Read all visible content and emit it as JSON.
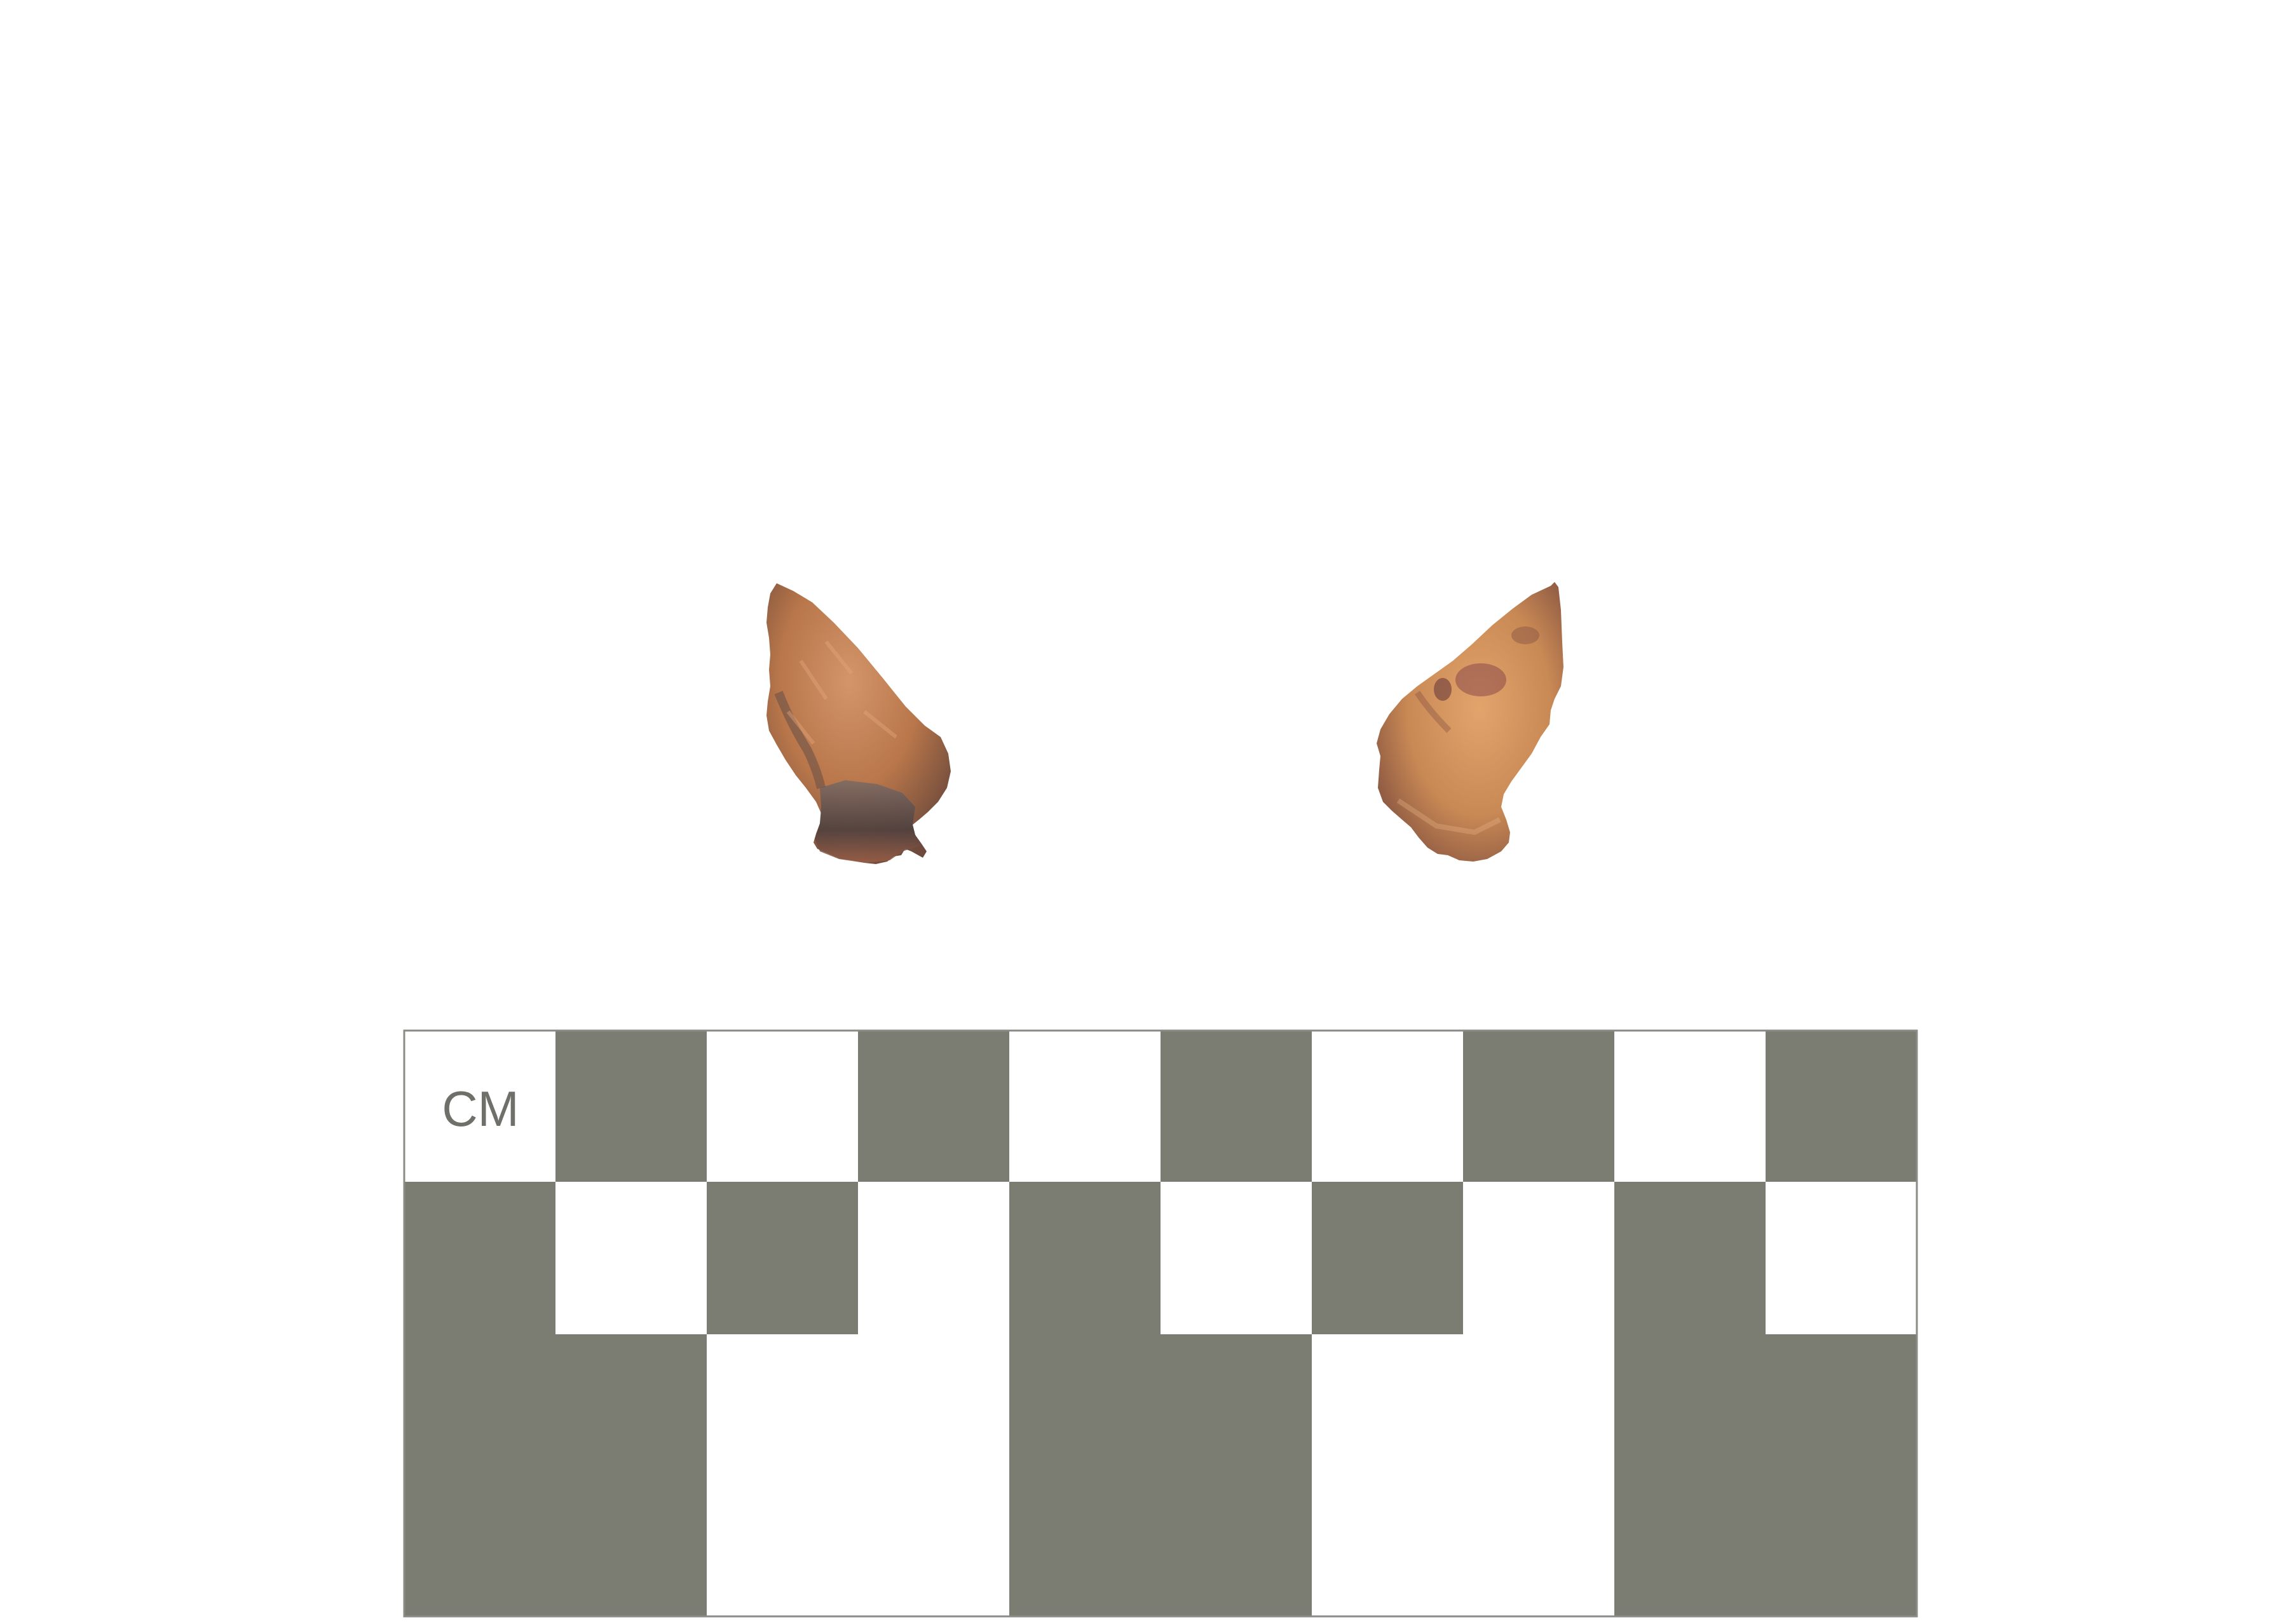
{
  "scale_bar": {
    "label": "CM",
    "colors": {
      "dark": "#7b7c72",
      "light": "#ffffff",
      "label": "#6f706a",
      "outline": "#8a8b84"
    },
    "rows": [
      {
        "cells": [
          "light",
          "dark",
          "light",
          "dark",
          "light",
          "dark",
          "light",
          "dark",
          "light",
          "dark"
        ]
      },
      {
        "cells": [
          "dark",
          "light",
          "dark",
          "light",
          "dark",
          "light",
          "dark",
          "light",
          "dark",
          "light"
        ]
      },
      {
        "blocks": [
          "dark",
          "light",
          "dark",
          "light",
          "dark"
        ]
      }
    ]
  },
  "artifacts": {
    "left": {
      "name": "projectile-point-dorsal",
      "base_color": "#b8764a",
      "dark_color": "#5a4a45"
    },
    "right": {
      "name": "projectile-point-ventral",
      "base_color": "#c98955",
      "dark_color": "#6a3f3a"
    }
  }
}
